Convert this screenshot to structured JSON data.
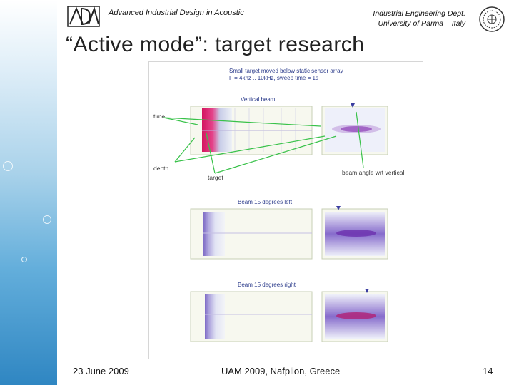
{
  "header": {
    "left_text": "Advanced Industrial Design in Acoustic",
    "right_line1": "Industrial Engineering Dept.",
    "right_line2": "University of Parma – Italy"
  },
  "title": "“Active mode”: target research",
  "figure": {
    "caption_line1": "Small target moved below static sensor array",
    "caption_line2": "F = 4khz .. 10kHz, sweep time = 1s",
    "section_labels": [
      "Vertical beam",
      "Beam 15 degrees left",
      "Beam 15 degrees right"
    ],
    "annotations": {
      "time": "time",
      "depth": "depth",
      "target": "target",
      "beam_angle": "beam angle wrt vertical"
    }
  },
  "footer": {
    "date": "23 June 2009",
    "conference": "UAM 2009,  Nafplion, Greece",
    "page": "14"
  },
  "colors": {
    "accent_blue": "#2f86c2",
    "figure_text": "#2a3a8a",
    "signal_magenta": "#c2187a"
  }
}
